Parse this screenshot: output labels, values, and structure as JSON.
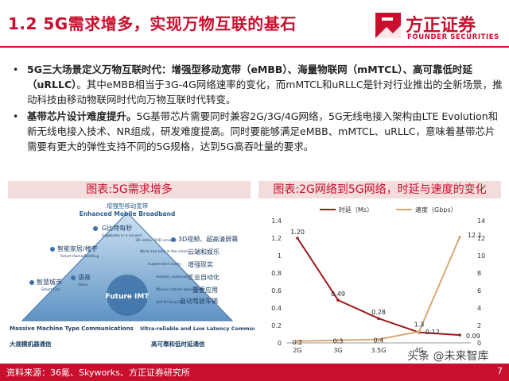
{
  "slide": {
    "title": "1.2 5G需求增多，实现万物互联的基石",
    "page_number": "7"
  },
  "logo": {
    "name": "方正证券",
    "name_en": "FOUNDER SECURITIES"
  },
  "bullets": [
    {
      "lead": "5G三大场景定义万物互联时代：增强型移动宽带（eMBB）、海量物联网（mMTCL）、高可靠低时延（uRLLC）",
      "body": "。其中eMBB相当于3G-4G网络速率的变化，而mMTCL和uRLLC是针对行业推出的全新场景，推动科技由移动物联网时代向万物互联时代转变。"
    },
    {
      "lead": "基带芯片设计难度提升。",
      "body": "5G基带芯片需要同时兼容2G/3G/4G网络，5G无线电接入架构由LTE Evolution和新无线电接入技术、NR组成，研发难度提高。同时要能够满足eMBB、mMTCL、uRLLC，意味着基带芯片需要有更大的弹性支持不同的5G规格，达到5G高吞吐量的要求。"
    }
  ],
  "left_panel": {
    "title": "图表:5G需求增多",
    "top_cn": "增强型移动宽带",
    "top_en": "Enhanced Mobile Broadband",
    "center": "Future IMT",
    "labels": [
      "G比特每秒",
      "3D视频、超高清屏幕",
      "智能家居/楼宇",
      "云端和娱乐",
      "增强现实",
      "语音",
      "工业自动化",
      "智慧城市",
      "重要应用",
      "自动驾驶车辆"
    ],
    "small_labels": [
      "Gigabytes in a second",
      "3D video, UHD screens",
      "Work and play in the cloud",
      "Smart Home/Building",
      "Augmented reality",
      "Industry automation",
      "Voice",
      "Mission critical application",
      "Smart City",
      "Self Driving Car"
    ],
    "left_caption_en": "Massive Machine Type Communications",
    "left_caption_cn": "大规模机器通信",
    "right_caption_en": "Ultra-reliable and Low Latency Communications",
    "right_caption_cn": "高可靠和低时延通信"
  },
  "right_panel": {
    "title": "图表:2G网络到5G网络，时延与速度的变化"
  },
  "chart_data": {
    "type": "line",
    "categories": [
      "2G",
      "3G",
      "3.5G",
      "4G",
      "5G"
    ],
    "series": [
      {
        "name": "时延（Ms）",
        "axis": "left",
        "color": "#9b1b1b",
        "values": [
          1.2,
          0.49,
          0.28,
          0.12,
          0.09
        ]
      },
      {
        "name": "速度（Gbps）",
        "axis": "right",
        "color": "#d9a871",
        "values": [
          0.2,
          0.3,
          0.4,
          1.3,
          12.1
        ]
      }
    ],
    "data_labels": {
      "时延（Ms）": [
        "1.20",
        "0.49",
        "0.28",
        "0.12",
        "0.09"
      ],
      "速度（Gbps）": [
        "0.2",
        "0.3",
        "0.4",
        "1.3",
        "12.1"
      ]
    },
    "y_left": {
      "min": 0,
      "max": 1.4,
      "ticks": [
        "0",
        "0.2",
        "0.4",
        "0.6",
        "0.8",
        "1",
        "1.2",
        "1.4"
      ]
    },
    "y_right": {
      "min": 0,
      "max": 14,
      "ticks": [
        "0",
        "2",
        "4",
        "6",
        "8",
        "10",
        "12",
        "14"
      ]
    },
    "legend_position": "top"
  },
  "footer": {
    "source": "资料来源：36氪、Skyworks、方正证券研究所"
  },
  "watermark": "头条 @未来智库",
  "colors": {
    "brand": "#c8102e",
    "panel_bg": "#f3dcdc",
    "latency": "#9b1b1b",
    "speed": "#d9a871"
  }
}
